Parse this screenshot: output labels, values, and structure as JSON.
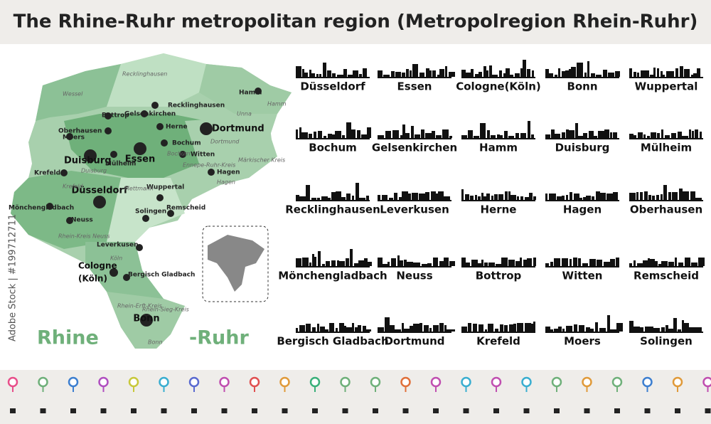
{
  "header": {
    "title": "The Rhine-Ruhr metropolitan region (Metropolregion Rhein-Ruhr)"
  },
  "map": {
    "big_cities": [
      "Dortmund",
      "Essen",
      "Düsseldorf",
      "Duisburg",
      "Bonn"
    ],
    "cities": [
      "Bottrop",
      "Gelsenkirchen",
      "Recklinghausen",
      "Oberhausen",
      "Herne",
      "Moers",
      "Bochum",
      "Mülheim",
      "Witten",
      "Krefeld",
      "Hagen",
      "Wuppertal",
      "Mönchengladbach",
      "Neuss",
      "Solingen",
      "Remscheid",
      "Leverkusen",
      "Bergisch Gladbach",
      "Hamm"
    ],
    "cologne": [
      "Cologne",
      "(Köln)"
    ],
    "districts": [
      "Wessel",
      "Recklinghausen",
      "Unna",
      "Hamm",
      "Märkischer Kreis",
      "Mettmann",
      "Rhein-Kreis Neuss",
      "Köln",
      "Rhein-Erft-Kreis",
      "Rhein-Sieg-Kreis",
      "Duisburg",
      "Krefeld",
      "Dortmund",
      "Ennepe-Ruhr-Kreis",
      "Bochum",
      "Hagen",
      "Bonn"
    ],
    "region_label": [
      "Rhine",
      "-Ruhr"
    ]
  },
  "skylines": [
    "Düsseldorf",
    "Essen",
    "Cologne(Köln)",
    "Bonn",
    "Wuppertal",
    "Bochum",
    "Gelsenkirchen",
    "Hamm",
    "Duisburg",
    "Mülheim",
    "Recklinghausen",
    "Leverkusen",
    "Herne",
    "Hagen",
    "Oberhausen",
    "Mönchengladbach",
    "Neuss",
    "Bottrop",
    "Witten",
    "Remscheid",
    "Bergisch Gladbach",
    "Dortmund",
    "Krefeld",
    "Moers",
    "Solingen"
  ],
  "watermark": "Adobe Stock | #199712711"
}
